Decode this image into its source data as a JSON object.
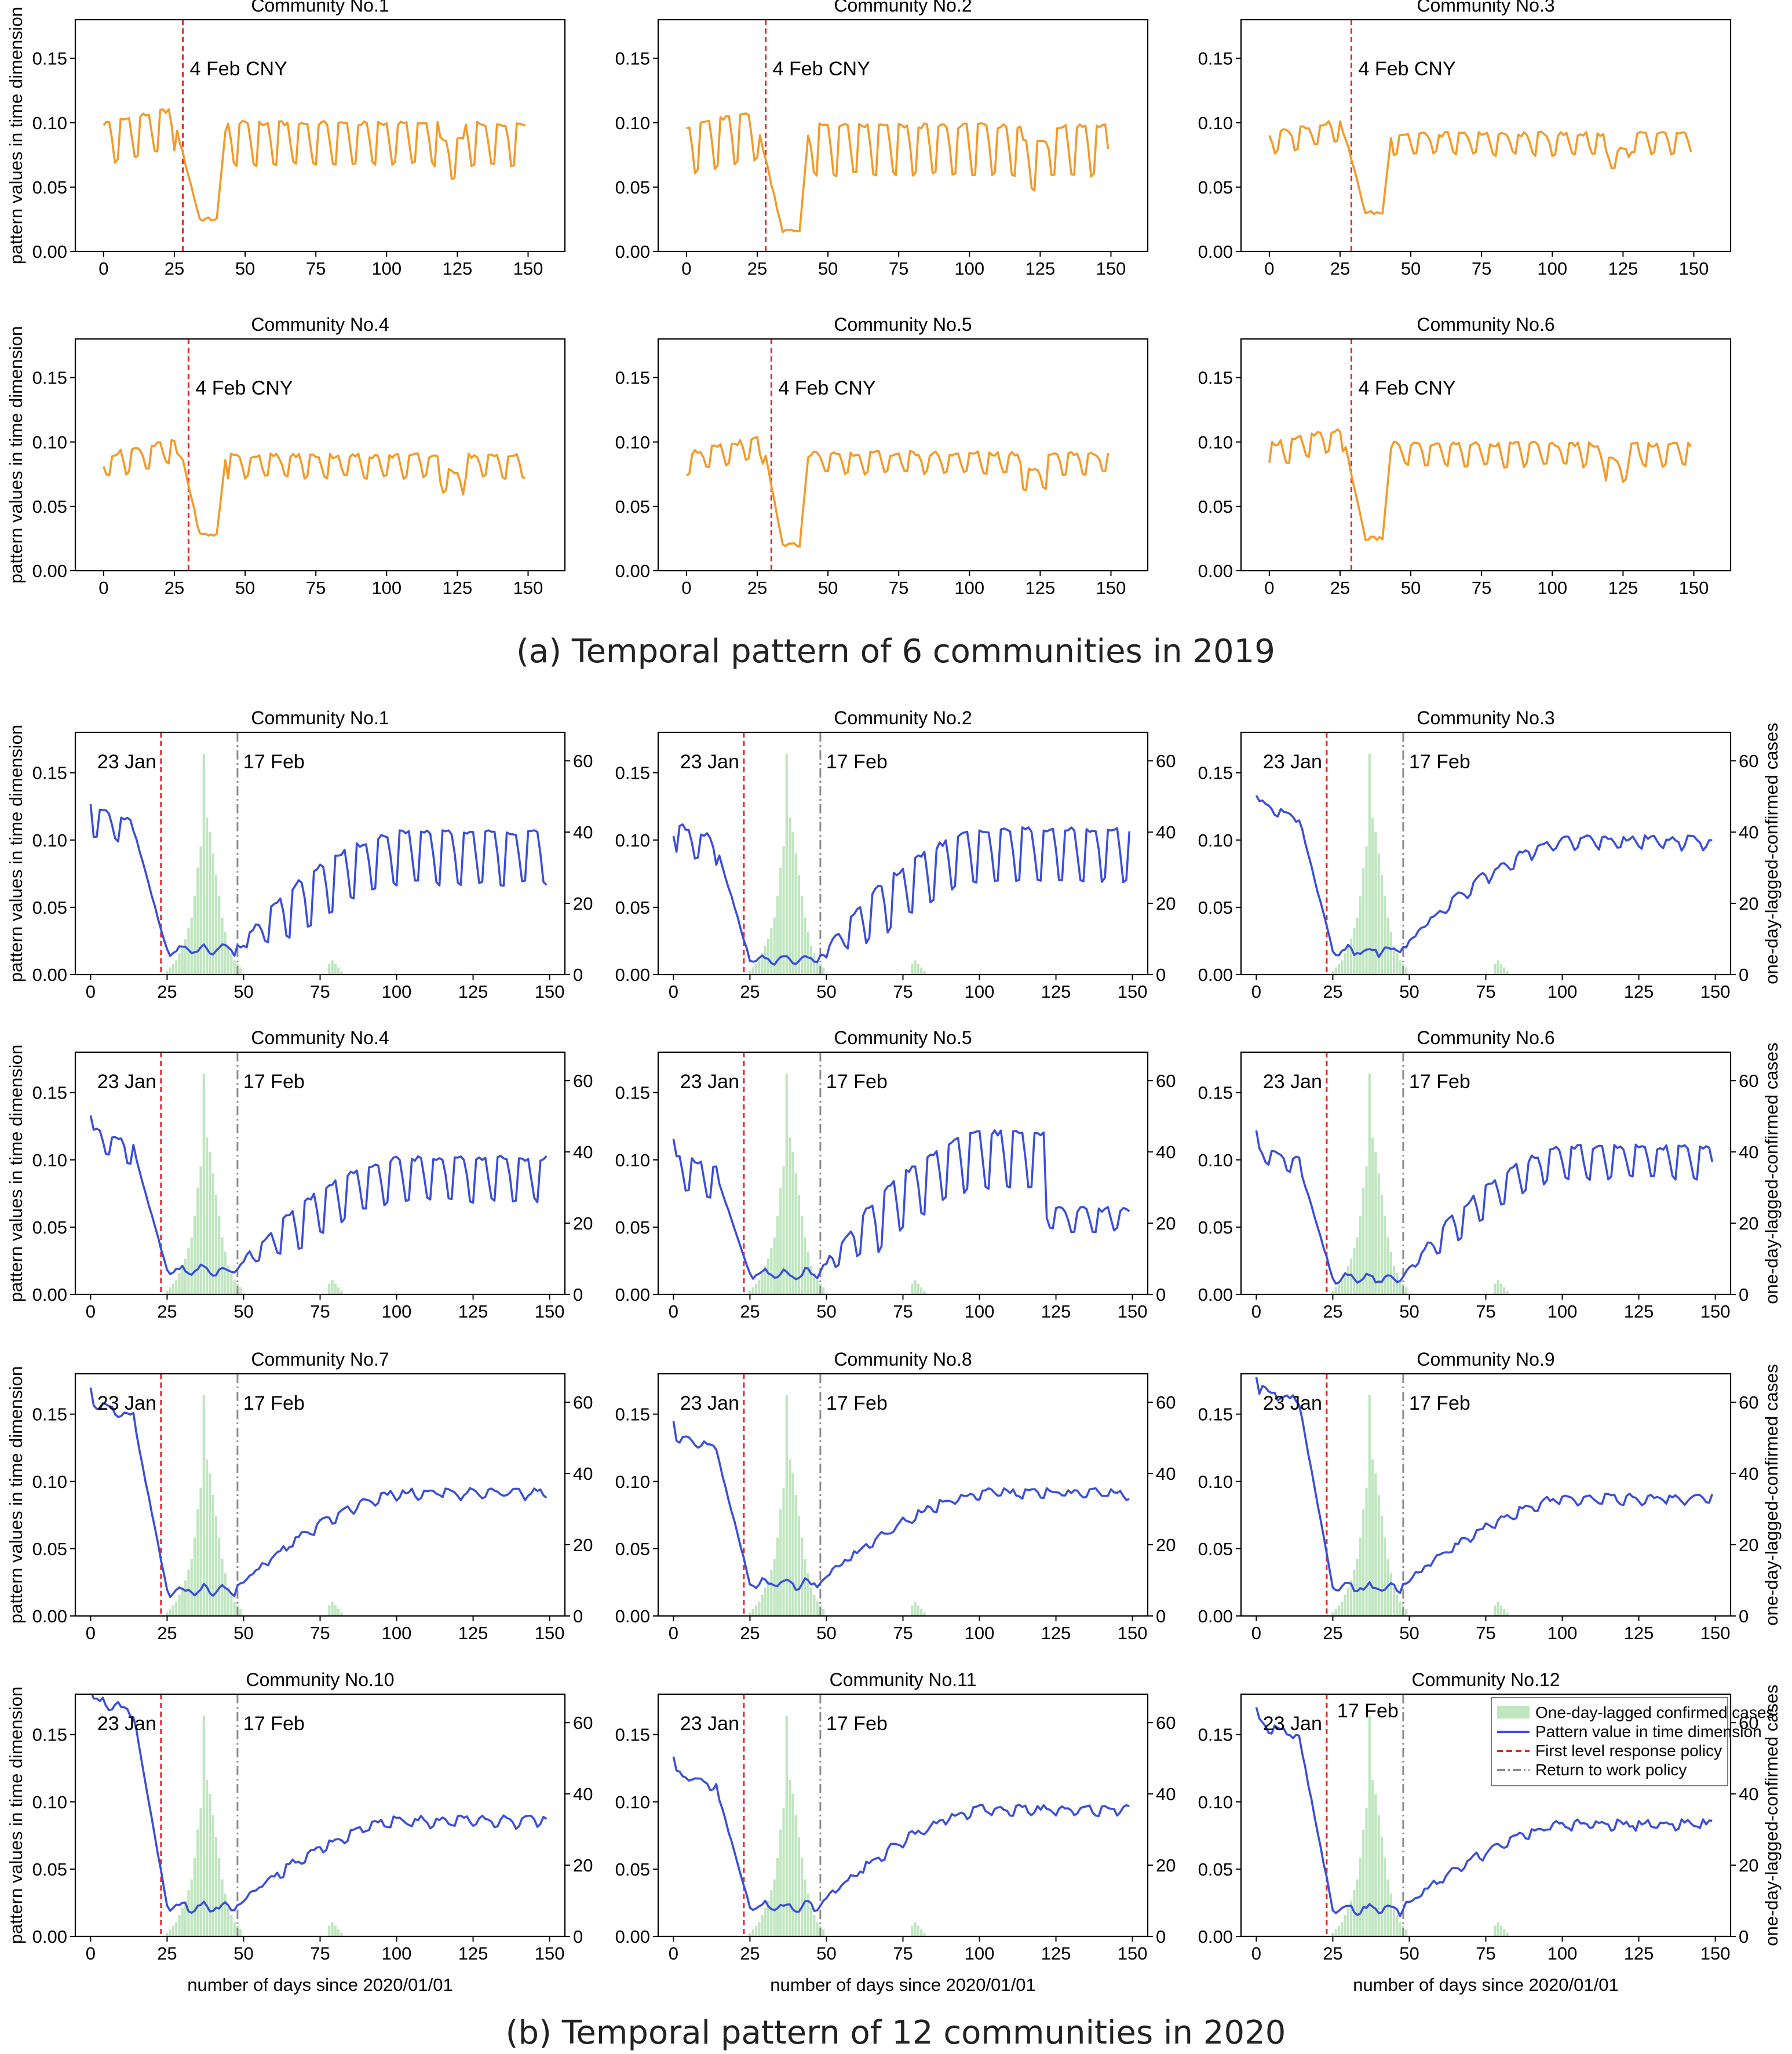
{
  "captions": {
    "panel_a": "(a) Temporal pattern of 6 communities in 2019",
    "panel_b": "(b) Temporal pattern of 12 communities in 2020"
  },
  "colors": {
    "series_2019": "#F39A2A",
    "series_2020": "#3B4FD8",
    "cases_bars": "#BFE6BF",
    "response_line": "#E0262A",
    "return_line": "#8C8C8C"
  },
  "axes": {
    "ylabel_left": "pattern values in time dimension",
    "ylabel_right": "one-day-lagged-confirmed cases",
    "xlabel": "number of days since 2020/01/01",
    "x_ticks": [
      0,
      25,
      50,
      75,
      100,
      125,
      150
    ],
    "y_ticks": [
      "0.00",
      "0.05",
      "0.10",
      "0.15"
    ],
    "y2_ticks": [
      "0",
      "20",
      "40",
      "60"
    ]
  },
  "annotations": {
    "cny": "4 Feb CNY",
    "jan23": "23 Jan",
    "feb17": "17 Feb"
  },
  "legend": {
    "cases": "One-day-lagged confirmed cases",
    "pattern": "Pattern value in time dimension",
    "response": "First level response policy",
    "return_work": "Return to work policy"
  },
  "chart_data": [
    {
      "type": "line",
      "panel": "a",
      "title": "Community No.1",
      "xlim": [
        -10,
        163
      ],
      "ylim": [
        0,
        0.18
      ],
      "marker_x": 28,
      "baseline": 0.093,
      "amp": 0.025,
      "trough": 0.025,
      "x": "days 0-149",
      "series": [
        {
          "name": "2019 pattern",
          "values": "weekly oscillation 0.06-0.11, drop to 0.025 at days 34-40"
        }
      ]
    },
    {
      "type": "line",
      "panel": "a",
      "title": "Community No.2",
      "xlim": [
        -10,
        163
      ],
      "ylim": [
        0,
        0.18
      ],
      "marker_x": 28,
      "baseline": 0.09,
      "amp": 0.03,
      "trough": 0.016,
      "series": [
        {
          "name": "2019 pattern",
          "values": "weekly oscillation 0.05-0.11, drop to 0.016 at days 34-40"
        }
      ]
    },
    {
      "type": "line",
      "panel": "a",
      "title": "Community No.3",
      "xlim": [
        -10,
        163
      ],
      "ylim": [
        0,
        0.18
      ],
      "marker_x": 29,
      "baseline": 0.088,
      "amp": 0.012,
      "trough": 0.03,
      "series": [
        {
          "name": "2019 pattern",
          "values": "0.08-0.10, drop to 0.03 at days 36-40"
        }
      ]
    },
    {
      "type": "line",
      "panel": "a",
      "title": "Community No.4",
      "xlim": [
        -10,
        163
      ],
      "ylim": [
        0,
        0.18
      ],
      "marker_x": 30,
      "baseline": 0.086,
      "amp": 0.013,
      "trough": 0.028,
      "series": [
        {
          "name": "2019 pattern",
          "values": "0.07-0.10, drop to 0.028 at days 36-40"
        }
      ]
    },
    {
      "type": "line",
      "panel": "a",
      "title": "Community No.5",
      "xlim": [
        -10,
        163
      ],
      "ylim": [
        0,
        0.18
      ],
      "marker_x": 30,
      "baseline": 0.088,
      "amp": 0.012,
      "trough": 0.02,
      "series": [
        {
          "name": "2019 pattern",
          "values": "0.07-0.10, drop to 0.02 at days 34-40"
        }
      ]
    },
    {
      "type": "line",
      "panel": "a",
      "title": "Community No.6",
      "xlim": [
        -10,
        163
      ],
      "ylim": [
        0,
        0.18
      ],
      "marker_x": 29,
      "baseline": 0.095,
      "amp": 0.013,
      "trough": 0.025,
      "series": [
        {
          "name": "2019 pattern",
          "values": "0.08-0.11, drop to 0.025 at days 36-40"
        }
      ]
    },
    {
      "type": "line",
      "panel": "b",
      "title": "Community No.1",
      "start": 0.12,
      "amp_pre": 0.015,
      "low": 0.018,
      "end": 0.098,
      "amp_post": 0.03,
      "anomaly": null,
      "xlim": [
        -5,
        155
      ],
      "ylim": [
        0,
        0.18
      ]
    },
    {
      "type": "line",
      "panel": "b",
      "title": "Community No.2",
      "start": 0.108,
      "amp_pre": 0.015,
      "low": 0.011,
      "end": 0.1,
      "amp_post": 0.03,
      "anomaly": null,
      "xlim": [
        -5,
        155
      ],
      "ylim": [
        0,
        0.18
      ]
    },
    {
      "type": "line",
      "panel": "b",
      "title": "Community No.3",
      "start": 0.128,
      "amp_pre": 0.004,
      "low": 0.018,
      "end": 0.1,
      "amp_post": 0.006,
      "anomaly": null,
      "xlim": [
        -5,
        155
      ],
      "ylim": [
        0,
        0.18
      ]
    },
    {
      "type": "line",
      "panel": "b",
      "title": "Community No.4",
      "start": 0.12,
      "amp_pre": 0.012,
      "low": 0.018,
      "end": 0.095,
      "amp_post": 0.025,
      "anomaly": null,
      "xlim": [
        -5,
        155
      ],
      "ylim": [
        0,
        0.18
      ]
    },
    {
      "type": "line",
      "panel": "b",
      "title": "Community No.5",
      "start": 0.1,
      "amp_pre": 0.02,
      "low": 0.015,
      "end": 0.112,
      "amp_post": 0.032,
      "anomaly": "drop_after_121",
      "xlim": [
        -5,
        155
      ],
      "ylim": [
        0,
        0.18
      ]
    },
    {
      "type": "line",
      "panel": "b",
      "title": "Community No.6",
      "start": 0.108,
      "amp_pre": 0.008,
      "low": 0.012,
      "end": 0.105,
      "amp_post": 0.018,
      "anomaly": null,
      "xlim": [
        -5,
        155
      ],
      "ylim": [
        0,
        0.18
      ]
    },
    {
      "type": "line",
      "panel": "b",
      "title": "Community No.7",
      "start": 0.158,
      "amp_pre": 0.004,
      "low": 0.019,
      "end": 0.092,
      "amp_post": 0.004,
      "anomaly": null,
      "xlim": [
        -5,
        155
      ],
      "ylim": [
        0,
        0.18
      ]
    },
    {
      "type": "line",
      "panel": "b",
      "title": "Community No.8",
      "start": 0.135,
      "amp_pre": 0.004,
      "low": 0.024,
      "end": 0.092,
      "amp_post": 0.004,
      "anomaly": null,
      "xlim": [
        -5,
        155
      ],
      "ylim": [
        0,
        0.18
      ]
    },
    {
      "type": "line",
      "panel": "b",
      "title": "Community No.9",
      "start": 0.17,
      "amp_pre": 0.004,
      "low": 0.021,
      "end": 0.088,
      "amp_post": 0.004,
      "anomaly": null,
      "xlim": [
        -5,
        155
      ],
      "ylim": [
        0,
        0.18
      ]
    },
    {
      "type": "line",
      "panel": "b",
      "title": "Community No.10",
      "start": 0.178,
      "amp_pre": 0.004,
      "low": 0.022,
      "end": 0.087,
      "amp_post": 0.005,
      "anomaly": null,
      "xlim": [
        -5,
        155
      ],
      "ylim": [
        0,
        0.18
      ]
    },
    {
      "type": "line",
      "panel": "b",
      "title": "Community No.11",
      "start": 0.122,
      "amp_pre": 0.003,
      "low": 0.022,
      "end": 0.095,
      "amp_post": 0.004,
      "anomaly": null,
      "xlim": [
        -5,
        155
      ],
      "ylim": [
        0,
        0.18
      ]
    },
    {
      "type": "line",
      "panel": "b",
      "title": "Community No.12",
      "start": 0.16,
      "amp_pre": 0.004,
      "low": 0.02,
      "end": 0.084,
      "amp_post": 0.004,
      "anomaly": null,
      "xlim": [
        -5,
        155
      ],
      "ylim": [
        0,
        0.18
      ]
    },
    {
      "type": "bar",
      "panel": "b",
      "name": "One-day-lagged confirmed cases",
      "y_axis": "right",
      "ylim": [
        0,
        68
      ],
      "x": [
        25,
        26,
        27,
        28,
        29,
        30,
        31,
        32,
        33,
        34,
        35,
        36,
        37,
        38,
        39,
        40,
        41,
        42,
        43,
        44,
        45,
        46,
        47,
        48,
        49,
        78,
        79,
        80,
        81,
        82
      ],
      "values": [
        1,
        2,
        3,
        4,
        6,
        8,
        10,
        13,
        16,
        22,
        30,
        36,
        62,
        44,
        40,
        34,
        28,
        22,
        16,
        12,
        8,
        6,
        4,
        3,
        2,
        3,
        4,
        3,
        2,
        1
      ]
    },
    {
      "type": "reference-lines",
      "panel": "b",
      "response_policy_day": 23,
      "return_to_work_day": 48
    }
  ]
}
